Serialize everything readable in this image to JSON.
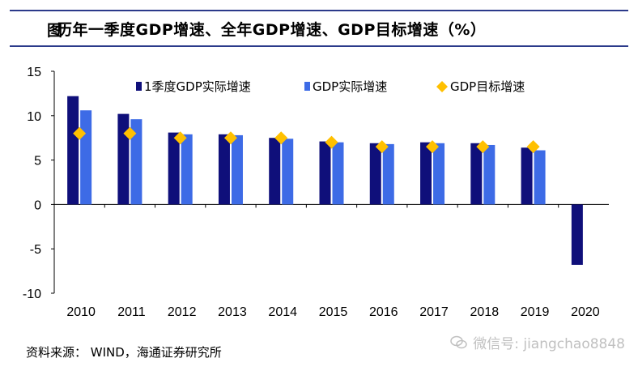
{
  "header": {
    "figure_label": "图",
    "title": "历年一季度GDP增速、全年GDP增速、GDP目标增速（%）"
  },
  "footer": {
    "source": "资料来源： WIND，海通证券研究所"
  },
  "watermark": {
    "text": "微信号: jiangchao8848"
  },
  "colors": {
    "q1": "#0f0f7a",
    "annual": "#3d6be6",
    "target": "#ffc000",
    "title_rule": "#2b3a8a"
  },
  "chart_data": {
    "type": "bar",
    "categories": [
      "2010",
      "2011",
      "2012",
      "2013",
      "2014",
      "2015",
      "2016",
      "2017",
      "2018",
      "2019",
      "2020"
    ],
    "series": [
      {
        "name": "1季度GDP实际增速",
        "kind": "bar",
        "values": [
          12.2,
          10.2,
          8.1,
          7.9,
          7.5,
          7.1,
          6.9,
          7.0,
          6.9,
          6.4,
          -6.8
        ]
      },
      {
        "name": "GDP实际增速",
        "kind": "bar",
        "values": [
          10.6,
          9.6,
          7.9,
          7.8,
          7.4,
          7.0,
          6.8,
          6.9,
          6.7,
          6.1,
          null
        ]
      },
      {
        "name": "GDP目标增速",
        "kind": "marker-diamond",
        "values": [
          8.0,
          8.0,
          7.5,
          7.5,
          7.5,
          7.0,
          6.5,
          6.5,
          6.5,
          6.5,
          null
        ]
      }
    ],
    "yticks": [
      15,
      10,
      5,
      0,
      -5,
      -10
    ],
    "ylim": [
      -10,
      15
    ],
    "xlabel": "",
    "ylabel": "",
    "legend_position": "top",
    "grid": false
  }
}
